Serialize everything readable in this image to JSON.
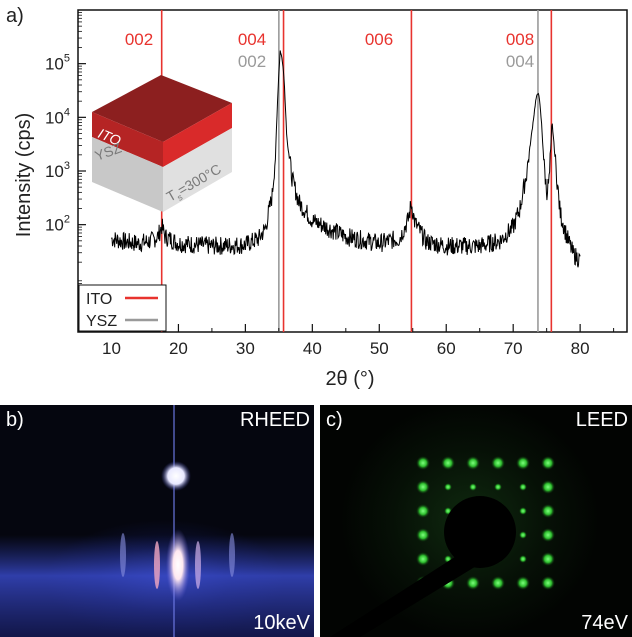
{
  "panel_a": {
    "letter": "a)",
    "ylabel": "Intensity (cps)",
    "xlabel": "2θ (°)",
    "x_ticks": [
      "10",
      "20",
      "30",
      "40",
      "50",
      "60",
      "70",
      "80"
    ],
    "y_ticks": [
      {
        "base": "10",
        "exp": "5"
      },
      {
        "base": "10",
        "exp": "4"
      },
      {
        "base": "10",
        "exp": "3"
      },
      {
        "base": "10",
        "exp": "2"
      }
    ],
    "peak_labels": [
      {
        "text": "002",
        "color": "#e8332e"
      },
      {
        "text": "004",
        "color": "#e8332e"
      },
      {
        "text": "002",
        "color": "#9a9a9a"
      },
      {
        "text": "006",
        "color": "#e8332e"
      },
      {
        "text": "008",
        "color": "#e8332e"
      },
      {
        "text": "004",
        "color": "#9a9a9a"
      }
    ],
    "legend": [
      {
        "label": "ITO",
        "color": "#e8332e"
      },
      {
        "label": "YSZ",
        "color": "#9a9a9a"
      }
    ],
    "inset": {
      "top_label": "ITO",
      "bottom_label": "YSZ",
      "temp_text": "T",
      "temp_sub": "s",
      "temp_rest": "=300°C"
    }
  },
  "panel_b": {
    "letter": "b)",
    "title": "RHEED",
    "energy": "10keV"
  },
  "panel_c": {
    "letter": "c)",
    "title": "LEED",
    "energy": "74eV"
  },
  "chart_data": {
    "type": "line",
    "title": "",
    "xlabel": "2θ (°)",
    "ylabel": "Intensity (cps)",
    "xlim": [
      5,
      87
    ],
    "ylim": [
      1,
      1000000
    ],
    "yscale": "log",
    "reference_lines": [
      {
        "x": 17.5,
        "material": "ITO",
        "color": "#e8332e"
      },
      {
        "x": 35.0,
        "material": "YSZ",
        "color": "#9a9a9a"
      },
      {
        "x": 35.7,
        "material": "ITO",
        "color": "#e8332e"
      },
      {
        "x": 54.8,
        "material": "ITO",
        "color": "#e8332e"
      },
      {
        "x": 73.7,
        "material": "YSZ",
        "color": "#9a9a9a"
      },
      {
        "x": 75.7,
        "material": "ITO",
        "color": "#e8332e"
      }
    ],
    "series": [
      {
        "name": "",
        "x": [
          10,
          12,
          14,
          16,
          17,
          17.5,
          18,
          20,
          25,
          30,
          32,
          33,
          34,
          34.5,
          34.9,
          35.2,
          35.5,
          35.8,
          36.2,
          37,
          38,
          40,
          45,
          50,
          53,
          54.3,
          54.8,
          55.3,
          57,
          60,
          65,
          68,
          70,
          71,
          72,
          72.8,
          73.4,
          73.8,
          74.2,
          74.6,
          75.0,
          75.4,
          75.8,
          76.4,
          77,
          78,
          79,
          80
        ],
        "y": [
          55,
          48,
          45,
          50,
          62,
          95,
          60,
          45,
          40,
          42,
          55,
          85,
          350,
          2000,
          40000,
          180000,
          120000,
          50000,
          4000,
          700,
          260,
          120,
          60,
          45,
          55,
          120,
          250,
          110,
          48,
          40,
          40,
          50,
          90,
          200,
          900,
          5500,
          22000,
          30000,
          9000,
          1400,
          400,
          700,
          8500,
          1100,
          170,
          60,
          28,
          22
        ]
      }
    ]
  }
}
